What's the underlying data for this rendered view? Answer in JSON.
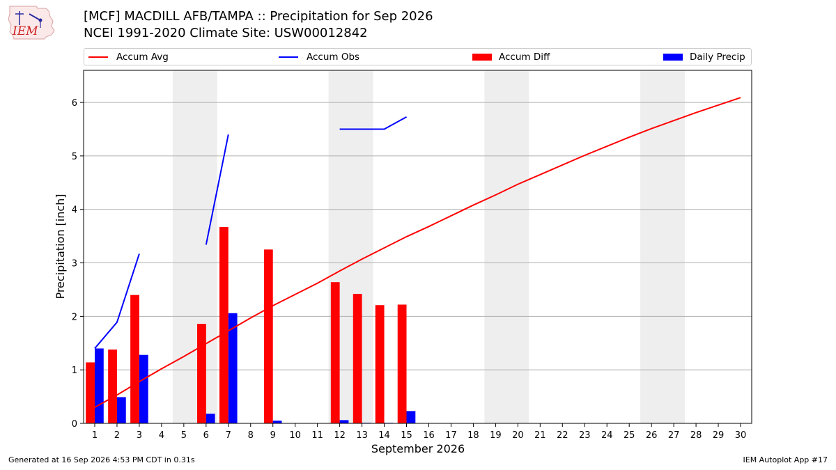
{
  "logo": {
    "text": "IEM",
    "icon": "iem-logo-icon"
  },
  "title": {
    "line1": "[MCF] MACDILL AFB/TAMPA :: Precipitation for Sep 2026",
    "line2": "NCEI 1991-2020 Climate Site: USW00012842"
  },
  "legend": {
    "accum_avg": "Accum Avg",
    "accum_obs": "Accum Obs",
    "accum_diff": "Accum Diff",
    "daily_precip": "Daily Precip"
  },
  "footer": {
    "left": "Generated at 16 Sep 2026 4:53 PM CDT in 0.31s",
    "right": "IEM Autoplot App #17"
  },
  "colors": {
    "avg": "#ff0000",
    "obs": "#0000ff",
    "diff": "#ff0000",
    "daily": "#0000ff",
    "weekend": "#eeeeee"
  },
  "chart_data": {
    "type": "bar",
    "xlabel": "September 2026",
    "ylabel": "Precipitation [inch]",
    "xlim": [
      0.5,
      30.5
    ],
    "ylim": [
      0,
      6.6
    ],
    "yticks": [
      0,
      1,
      2,
      3,
      4,
      5,
      6
    ],
    "xticks": [
      1,
      2,
      3,
      4,
      5,
      6,
      7,
      8,
      9,
      10,
      11,
      12,
      13,
      14,
      15,
      16,
      17,
      18,
      19,
      20,
      21,
      22,
      23,
      24,
      25,
      26,
      27,
      28,
      29,
      30
    ],
    "grid": "y",
    "legend_position": "top",
    "weekend_days": [
      5,
      6,
      12,
      13,
      19,
      20,
      26,
      27
    ],
    "series": [
      {
        "name": "Accum Avg",
        "kind": "line",
        "x": [
          1,
          2,
          3,
          4,
          5,
          6,
          7,
          8,
          9,
          10,
          11,
          12,
          13,
          14,
          15,
          16,
          17,
          18,
          19,
          20,
          21,
          22,
          23,
          24,
          25,
          26,
          27,
          28,
          29,
          30
        ],
        "values": [
          0.3,
          0.53,
          0.78,
          1.02,
          1.25,
          1.49,
          1.73,
          1.97,
          2.2,
          2.41,
          2.62,
          2.85,
          3.07,
          3.28,
          3.49,
          3.68,
          3.88,
          4.08,
          4.27,
          4.47,
          4.65,
          4.83,
          5.01,
          5.18,
          5.35,
          5.51,
          5.66,
          5.81,
          5.95,
          6.09
        ]
      },
      {
        "name": "Accum Obs",
        "kind": "line",
        "segments": [
          {
            "x": [
              1,
              2,
              3
            ],
            "values": [
              1.4,
              1.89,
              3.17
            ]
          },
          {
            "x": [
              6,
              7
            ],
            "values": [
              3.34,
              5.4
            ]
          },
          {
            "x": [
              12,
              13,
              14,
              15
            ],
            "values": [
              5.5,
              5.5,
              5.5,
              5.73
            ]
          }
        ]
      },
      {
        "name": "Accum Diff",
        "kind": "bar",
        "x": [
          1,
          2,
          3,
          6,
          7,
          9,
          12,
          13,
          14,
          15
        ],
        "values": [
          1.14,
          1.38,
          2.4,
          1.86,
          3.67,
          3.25,
          2.64,
          2.42,
          2.21,
          2.22
        ]
      },
      {
        "name": "Daily Precip",
        "kind": "bar",
        "x": [
          1,
          2,
          3,
          6,
          7,
          9,
          12,
          13,
          14,
          15
        ],
        "values": [
          1.4,
          0.49,
          1.28,
          0.18,
          2.06,
          0.05,
          0.06,
          0.01,
          0.01,
          0.23
        ]
      }
    ]
  }
}
